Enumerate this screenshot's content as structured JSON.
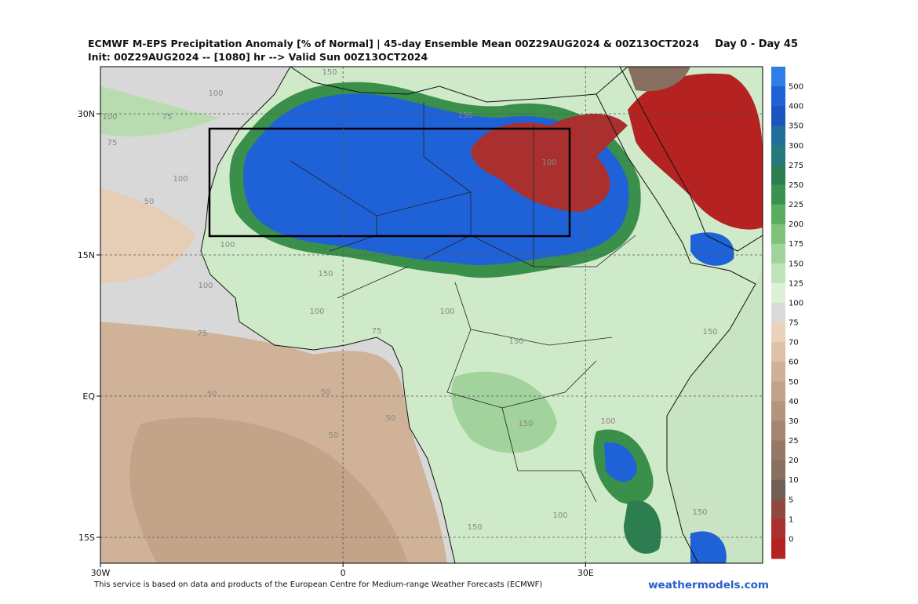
{
  "map": {
    "title": "ECMWF M-EPS Precipitation Anomaly [% of Normal] | 45-day Ensemble Mean 00Z29AUG2024 & 00Z13OCT2024",
    "subtitle": "Init: 00Z29AUG2024 -- [1080] hr --> Valid Sun 00Z13OCT2024",
    "period": "Day 0 - Day 45",
    "xlim": [
      -30,
      51.9
    ],
    "ylim": [
      -17.75,
      35
    ],
    "lat_ticks": [
      {
        "value": 30,
        "label": "30N"
      },
      {
        "value": 15,
        "label": "15N"
      },
      {
        "value": 0,
        "label": "EQ"
      },
      {
        "value": -15,
        "label": "15S"
      }
    ],
    "lon_ticks": [
      {
        "value": -30,
        "label": "30W"
      },
      {
        "value": 0,
        "label": "0"
      },
      {
        "value": 30,
        "label": "30E"
      }
    ],
    "colorbar": {
      "levels": [
        500,
        400,
        350,
        300,
        275,
        250,
        225,
        200,
        175,
        150,
        125,
        100,
        75,
        70,
        60,
        50,
        40,
        30,
        25,
        20,
        10,
        5,
        1,
        0
      ],
      "colors": [
        "#2f7fe6",
        "#1f62d8",
        "#1b55bf",
        "#1f6e9c",
        "#24787e",
        "#2c7d4f",
        "#3b9150",
        "#5aac5f",
        "#80c27c",
        "#a2d39c",
        "#c0e4b9",
        "#dcf1d6",
        "#dadada",
        "#ead2bd",
        "#dfc1a8",
        "#d0b196",
        "#c2a389",
        "#b4947d",
        "#a68672",
        "#977866",
        "#87705f",
        "#6f5f55",
        "#8e4a40",
        "#aa3030",
        "#b52222"
      ]
    },
    "contour_labels": [
      "150",
      "100",
      "100",
      "75",
      "75",
      "100",
      "50",
      "100",
      "150",
      "100",
      "150",
      "100",
      "75",
      "50",
      "50",
      "50",
      "50",
      "150",
      "100",
      "150",
      "100",
      "150",
      "100",
      "75",
      "100",
      "150",
      "150"
    ],
    "footer": "This service is based on data and products of the European Centre for Medium-range Weather Forecasts (ECMWF)",
    "watermark": "weathermodels.com"
  }
}
